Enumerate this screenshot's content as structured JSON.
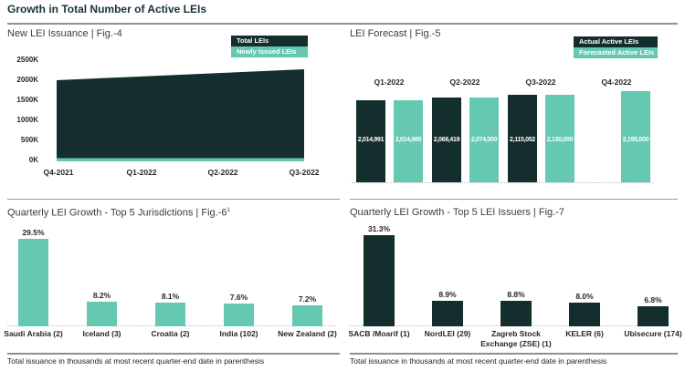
{
  "header": {
    "title": "Growth in Total Number of Active LEIs"
  },
  "colors": {
    "dark": "#142E2D",
    "teal": "#65C9B1"
  },
  "fig4": {
    "title": "New LEI Issuance | Fig.-4",
    "legend": [
      "Total LEIs",
      "Newly Issued LEIs"
    ],
    "y_ticks": [
      "2500K",
      "2000K",
      "1500K",
      "1000K",
      "500K",
      "0K"
    ],
    "x_ticks": [
      "Q4-2021",
      "Q1-2022",
      "Q2-2022",
      "Q3-2022"
    ]
  },
  "fig5": {
    "title": "LEI Forecast | Fig.-5",
    "legend": [
      "Actual Active LEIs",
      "Forecasted Active LEIs"
    ]
  },
  "fig6": {
    "title": "Quarterly LEI Growth - Top 5 Jurisdictions | Fig.-6",
    "title_sup": "1",
    "footnote": "Total issuance in thousands at most recent quarter-end date in parenthesis"
  },
  "fig7": {
    "title": "Quarterly LEI Growth - Top 5 LEI Issuers | Fig.-7",
    "footnote": "Total issuance in thousands at most recent quarter-end date in parenthesis"
  },
  "chart_data": [
    {
      "type": "area",
      "title": "New LEI Issuance | Fig.-4",
      "x": [
        "Q4-2021",
        "Q1-2022",
        "Q2-2022",
        "Q3-2022"
      ],
      "series": [
        {
          "name": "Total LEIs",
          "color": "#142E2D",
          "values_thousands": [
            2005,
            2095,
            2185,
            2275
          ]
        },
        {
          "name": "Newly Issued LEIs",
          "color": "#65C9B1",
          "values_thousands": [
            80,
            80,
            80,
            80
          ]
        }
      ],
      "ylim_thousands": [
        0,
        2500
      ],
      "yticks": [
        "0K",
        "500K",
        "1000K",
        "1500K",
        "2000K",
        "2500K"
      ],
      "legend_position": "top-right",
      "grid": false
    },
    {
      "type": "bar",
      "title": "LEI Forecast | Fig.-5",
      "categories": [
        "Q1-2022",
        "Q2-2022",
        "Q3-2022",
        "Q4-2022"
      ],
      "series": [
        {
          "name": "Actual Active LEIs",
          "color": "#142E2D",
          "values": [
            2014991,
            2068419,
            2115052,
            null
          ]
        },
        {
          "name": "Forecasted Active LEIs",
          "color": "#65C9B1",
          "values": [
            2014000,
            2074000,
            2130000,
            2195000
          ]
        }
      ],
      "data_labels": true,
      "legend_position": "top-right"
    },
    {
      "type": "bar",
      "title": "Quarterly LEI Growth - Top 5 Jurisdictions | Fig.-6¹",
      "categories": [
        "Saudi Arabia (2)",
        "Iceland (3)",
        "Croatia (2)",
        "India (102)",
        "New Zealand (2)"
      ],
      "values": [
        29.5,
        8.2,
        8.1,
        7.6,
        7.2
      ],
      "unit": "%",
      "bar_color": "#65C9B1"
    },
    {
      "type": "bar",
      "title": "Quarterly LEI Growth - Top 5 LEI Issuers | Fig.-7",
      "categories": [
        "SACB /Moarif (1)",
        "NordLEI (29)",
        "Zagreb Stock Exchange (ZSE) (1)",
        "KELER (6)",
        "Ubisecure (174)"
      ],
      "values": [
        31.3,
        8.9,
        8.8,
        8.0,
        6.8
      ],
      "unit": "%",
      "bar_color": "#142E2D"
    }
  ]
}
